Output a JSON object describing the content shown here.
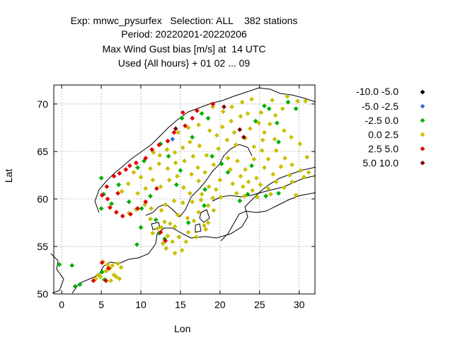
{
  "title_lines": [
    "Exp: mnwc_pysurfex   Selection: ALL    382 stations",
    "Period: 20220201-20220206",
    "Max Wind Gust bias [m/s] at  14 UTC",
    "Used {All hours} + 01 02 ... 09"
  ],
  "legend": [
    {
      "label": "-10.0 -5.0",
      "color": "#000000"
    },
    {
      "label": "-5.0 -2.5",
      "color": "#3b6fd1"
    },
    {
      "label": "-2.5 0.0",
      "color": "#00b000"
    },
    {
      "label": "0.0 2.5",
      "color": "#c8c000"
    },
    {
      "label": "2.5 5.0",
      "color": "#e00000"
    },
    {
      "label": "5.0 10.0",
      "color": "#7a0000"
    }
  ],
  "chart_data": {
    "type": "scatter",
    "xlabel": "Lon",
    "ylabel": "Lat",
    "xlim": [
      -1,
      32
    ],
    "ylim": [
      50,
      72
    ],
    "xticks": [
      0,
      5,
      10,
      15,
      20,
      25,
      30
    ],
    "yticks": [
      50,
      55,
      60,
      65,
      70
    ],
    "grid": true,
    "legend_position": "right",
    "series": [
      {
        "name": "-10.0 -5.0",
        "points": []
      },
      {
        "name": "-5.0 -2.5",
        "points": [
          [
            14.0,
            66.3
          ]
        ]
      },
      {
        "name": "-2.5 0.0",
        "points": [
          [
            -0.3,
            53.1
          ],
          [
            1.3,
            53.0
          ],
          [
            1.7,
            50.8
          ],
          [
            2.3,
            51.0
          ],
          [
            5.1,
            52.3
          ],
          [
            5.4,
            51.5
          ],
          [
            5.0,
            59.0
          ],
          [
            5.3,
            60.5
          ],
          [
            6.3,
            59.5
          ],
          [
            5.0,
            62.2
          ],
          [
            7.2,
            61.5
          ],
          [
            9.6,
            63.3
          ],
          [
            10.4,
            64.0
          ],
          [
            12.5,
            65.8
          ],
          [
            13.5,
            64.5
          ],
          [
            15.0,
            63.0
          ],
          [
            15.2,
            68.5
          ],
          [
            17.7,
            69.0
          ],
          [
            16.5,
            66.5
          ],
          [
            18.5,
            68.5
          ],
          [
            19.0,
            64.5
          ],
          [
            20.2,
            63.7
          ],
          [
            21.0,
            62.8
          ],
          [
            24.0,
            63.5
          ],
          [
            24.5,
            68.2
          ],
          [
            25.6,
            69.8
          ],
          [
            26.2,
            69.5
          ],
          [
            27.2,
            68.0
          ],
          [
            28.6,
            70.2
          ],
          [
            29.6,
            69.5
          ],
          [
            27.4,
            66.0
          ],
          [
            25.8,
            60.3
          ],
          [
            27.4,
            60.6
          ],
          [
            16.0,
            57.5
          ],
          [
            18.0,
            59.3
          ],
          [
            11.9,
            57.8
          ],
          [
            13.0,
            55.8
          ],
          [
            9.5,
            55.2
          ],
          [
            10.0,
            57.0
          ],
          [
            12.3,
            56.4
          ],
          [
            14.5,
            61.5
          ],
          [
            18.1,
            61.0
          ],
          [
            22.5,
            59.8
          ],
          [
            23.5,
            60.5
          ],
          [
            8.5,
            59.7
          ],
          [
            11.2,
            60.3
          ],
          [
            10.1,
            59.0
          ]
        ]
      },
      {
        "name": "0.0 2.5",
        "points": [
          [
            4.9,
            51.8
          ],
          [
            5.6,
            52.4
          ],
          [
            6.1,
            52.7
          ],
          [
            6.6,
            52.0
          ],
          [
            7.1,
            53.2
          ],
          [
            6.2,
            51.4
          ],
          [
            4.6,
            52.0
          ],
          [
            7.5,
            52.8
          ],
          [
            5.8,
            53.1
          ],
          [
            6.9,
            51.8
          ],
          [
            5.2,
            53.4
          ],
          [
            6.4,
            53.0
          ],
          [
            4.3,
            51.6
          ],
          [
            7.3,
            51.6
          ],
          [
            8.5,
            58.5
          ],
          [
            9.4,
            58.9
          ],
          [
            10.5,
            59.4
          ],
          [
            11.3,
            59.0
          ],
          [
            12.6,
            58.8
          ],
          [
            13.1,
            59.4
          ],
          [
            14.2,
            59.8
          ],
          [
            15.3,
            59.6
          ],
          [
            16.5,
            59.7
          ],
          [
            17.6,
            59.9
          ],
          [
            18.5,
            59.3
          ],
          [
            14.7,
            58.3
          ],
          [
            15.9,
            58.0
          ],
          [
            13.0,
            57.6
          ],
          [
            12.1,
            56.9
          ],
          [
            14.3,
            57.1
          ],
          [
            16.0,
            56.5
          ],
          [
            14.8,
            56.0
          ],
          [
            13.4,
            56.1
          ],
          [
            15.7,
            55.5
          ],
          [
            16.7,
            57.7
          ],
          [
            17.3,
            58.6
          ],
          [
            18.0,
            57.2
          ],
          [
            13.7,
            57.4
          ],
          [
            11.2,
            57.9
          ],
          [
            12.6,
            57.0
          ],
          [
            14.0,
            55.5
          ],
          [
            11.5,
            56.4
          ],
          [
            7.6,
            60.8
          ],
          [
            8.4,
            61.6
          ],
          [
            9.6,
            60.6
          ],
          [
            10.6,
            61.1
          ],
          [
            11.5,
            62.0
          ],
          [
            12.5,
            61.3
          ],
          [
            13.6,
            62.0
          ],
          [
            14.6,
            62.4
          ],
          [
            15.4,
            61.2
          ],
          [
            16.4,
            62.6
          ],
          [
            17.3,
            61.9
          ],
          [
            16.2,
            60.6
          ],
          [
            10.0,
            62.3
          ],
          [
            9.1,
            62.8
          ],
          [
            11.2,
            63.2
          ],
          [
            12.3,
            63.7
          ],
          [
            13.4,
            63.2
          ],
          [
            14.4,
            63.8
          ],
          [
            15.5,
            64.0
          ],
          [
            16.6,
            64.5
          ],
          [
            17.2,
            63.3
          ],
          [
            18.1,
            62.8
          ],
          [
            19.2,
            63.6
          ],
          [
            18.3,
            64.6
          ],
          [
            19.8,
            65.3
          ],
          [
            17.4,
            65.6
          ],
          [
            16.2,
            66.0
          ],
          [
            15.3,
            65.4
          ],
          [
            14.3,
            64.9
          ],
          [
            13.3,
            65.2
          ],
          [
            12.4,
            64.6
          ],
          [
            11.6,
            64.9
          ],
          [
            14.7,
            67.0
          ],
          [
            16.0,
            67.5
          ],
          [
            17.3,
            67.8
          ],
          [
            18.7,
            67.2
          ],
          [
            19.6,
            66.7
          ],
          [
            20.3,
            67.6
          ],
          [
            21.4,
            68.2
          ],
          [
            22.6,
            68.7
          ],
          [
            21.8,
            67.0
          ],
          [
            20.9,
            66.2
          ],
          [
            22.0,
            65.7
          ],
          [
            23.2,
            66.4
          ],
          [
            23.8,
            67.4
          ],
          [
            24.9,
            68.0
          ],
          [
            25.6,
            67.0
          ],
          [
            26.3,
            67.9
          ],
          [
            27.0,
            68.8
          ],
          [
            27.9,
            69.5
          ],
          [
            26.6,
            70.4
          ],
          [
            28.5,
            70.8
          ],
          [
            29.8,
            70.3
          ],
          [
            30.8,
            70.3
          ],
          [
            24.0,
            70.5
          ],
          [
            22.8,
            70.2
          ],
          [
            21.5,
            69.7
          ],
          [
            20.4,
            69.2
          ],
          [
            19.1,
            69.7
          ],
          [
            23.5,
            69.0
          ],
          [
            25.2,
            69.1
          ],
          [
            21.0,
            64.3
          ],
          [
            22.2,
            64.0
          ],
          [
            23.2,
            63.1
          ],
          [
            24.3,
            64.2
          ],
          [
            25.3,
            65.1
          ],
          [
            26.1,
            64.2
          ],
          [
            27.1,
            65.1
          ],
          [
            28.2,
            64.3
          ],
          [
            29.1,
            63.6
          ],
          [
            30.2,
            63.0
          ],
          [
            28.8,
            62.5
          ],
          [
            27.7,
            63.4
          ],
          [
            26.7,
            62.6
          ],
          [
            25.6,
            63.3
          ],
          [
            24.6,
            62.2
          ],
          [
            23.6,
            61.8
          ],
          [
            22.6,
            62.4
          ],
          [
            21.6,
            61.6
          ],
          [
            22.1,
            60.6
          ],
          [
            23.1,
            60.3
          ],
          [
            24.1,
            60.9
          ],
          [
            25.1,
            61.5
          ],
          [
            26.1,
            61.1
          ],
          [
            27.1,
            61.8
          ],
          [
            28.1,
            61.2
          ],
          [
            29.1,
            61.8
          ],
          [
            30.6,
            62.3
          ],
          [
            29.6,
            60.4
          ],
          [
            26.4,
            60.5
          ],
          [
            24.7,
            60.2
          ],
          [
            21.3,
            63.1
          ],
          [
            31.0,
            64.4
          ],
          [
            30.1,
            65.8
          ],
          [
            29.0,
            66.5
          ],
          [
            28.1,
            67.2
          ],
          [
            26.9,
            66.3
          ],
          [
            25.4,
            66.2
          ],
          [
            24.3,
            65.5
          ],
          [
            31.2,
            62.8
          ],
          [
            22.9,
            61.3
          ],
          [
            19.1,
            60.1
          ],
          [
            20.1,
            60.2
          ],
          [
            18.5,
            57.5
          ],
          [
            18.2,
            56.8
          ],
          [
            17.0,
            56.0
          ],
          [
            13.2,
            54.8
          ],
          [
            14.3,
            54.3
          ],
          [
            15.2,
            54.6
          ],
          [
            12.8,
            55.3
          ],
          [
            19.5,
            61.0
          ],
          [
            20.0,
            62.0
          ],
          [
            18.6,
            61.3
          ],
          [
            17.7,
            60.5
          ],
          [
            19.2,
            58.8
          ]
        ]
      },
      {
        "name": "2.5 5.0",
        "points": [
          [
            4.0,
            51.4
          ],
          [
            5.6,
            51.4
          ],
          [
            5.1,
            53.3
          ],
          [
            5.9,
            52.7
          ],
          [
            5.1,
            60.4
          ],
          [
            5.7,
            61.3
          ],
          [
            6.6,
            62.4
          ],
          [
            7.3,
            62.7
          ],
          [
            8.1,
            63.1
          ],
          [
            8.6,
            63.5
          ],
          [
            9.4,
            63.8
          ],
          [
            10.6,
            64.3
          ],
          [
            11.4,
            65.2
          ],
          [
            12.3,
            65.7
          ],
          [
            13.4,
            66.1
          ],
          [
            14.2,
            67.0
          ],
          [
            15.6,
            67.7
          ],
          [
            16.5,
            68.5
          ],
          [
            17.1,
            69.3
          ],
          [
            15.3,
            69.1
          ],
          [
            6.1,
            59.1
          ],
          [
            6.9,
            58.6
          ],
          [
            7.7,
            58.2
          ],
          [
            8.7,
            58.4
          ],
          [
            9.6,
            59.0
          ],
          [
            10.6,
            59.7
          ],
          [
            7.1,
            60.6
          ],
          [
            5.8,
            60.0
          ],
          [
            12.0,
            61.1
          ],
          [
            13.1,
            55.6
          ],
          [
            12.5,
            56.5
          ],
          [
            19.1,
            70.0
          ]
        ]
      },
      {
        "name": "5.0 10.0",
        "points": [
          [
            14.4,
            67.4
          ],
          [
            20.5,
            69.7
          ],
          [
            22.5,
            67.3
          ],
          [
            23.0,
            66.5
          ]
        ]
      }
    ]
  }
}
